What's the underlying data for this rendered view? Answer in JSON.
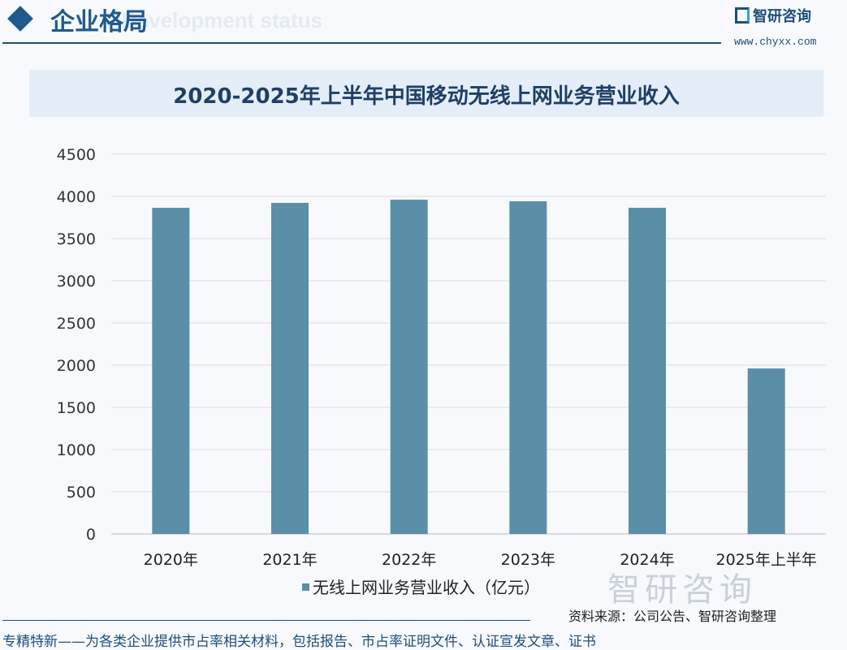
{
  "header": {
    "title": "企业格局",
    "ghost_text": "Development status",
    "logo_text": "智研咨询",
    "url": "www.chyxx.com"
  },
  "watermark": "智研咨询",
  "source": "资料来源：公司公告、智研咨询整理",
  "footer": "专精特新——为各类企业提供市占率相关材料，包括报告、市占率证明文件、认证宣发文章、证书",
  "colors": {
    "bar": "#5b8fa8",
    "title": "#1f3f66",
    "accent": "#1f5a8c"
  },
  "chart_data": {
    "type": "bar",
    "title": "2020-2025年上半年中国移动无线上网业务营业收入",
    "categories": [
      "2020年",
      "2021年",
      "2022年",
      "2023年",
      "2024年",
      "2025年上半年"
    ],
    "series": [
      {
        "name": "无线上网业务营业收入（亿元）",
        "values": [
          3865,
          3923,
          3961,
          3942,
          3865,
          1961
        ]
      }
    ],
    "ylim": [
      0,
      4500
    ],
    "yticks": [
      0,
      500,
      1000,
      1500,
      2000,
      2500,
      3000,
      3500,
      4000,
      4500
    ],
    "grid": true,
    "legend": "bottom"
  }
}
